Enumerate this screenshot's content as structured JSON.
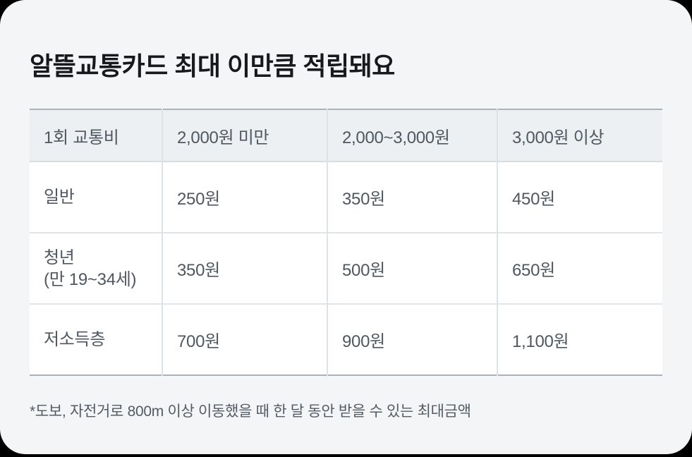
{
  "colors": {
    "page_background": "#000000",
    "card_background": "#f4f5f7",
    "table_header_background": "#edf0f3",
    "table_body_background": "#ffffff",
    "table_strong_border": "#a9b1b9",
    "table_divider": "#dde2e6",
    "text_primary": "#17191d",
    "text_secondary": "#4f5860"
  },
  "card": {
    "title": "알뜰교통카드 최대 이만큼 적립돼요",
    "footnote": "*도보, 자전거로 800m 이상 이동했을 때 한 달 동안 받을 수 있는 최대금액"
  },
  "table": {
    "header": [
      "1회 교통비",
      "2,000원 미만",
      "2,000~3,000원",
      "3,000원 이상"
    ],
    "rows": [
      {
        "label": "일반",
        "label_sub": "",
        "values": [
          "250원",
          "350원",
          "450원"
        ]
      },
      {
        "label": "청년",
        "label_sub": "(만 19~34세)",
        "values": [
          "350원",
          "500원",
          "650원"
        ]
      },
      {
        "label": "저소득층",
        "label_sub": "",
        "values": [
          "700원",
          "900원",
          "1,100원"
        ]
      }
    ]
  }
}
